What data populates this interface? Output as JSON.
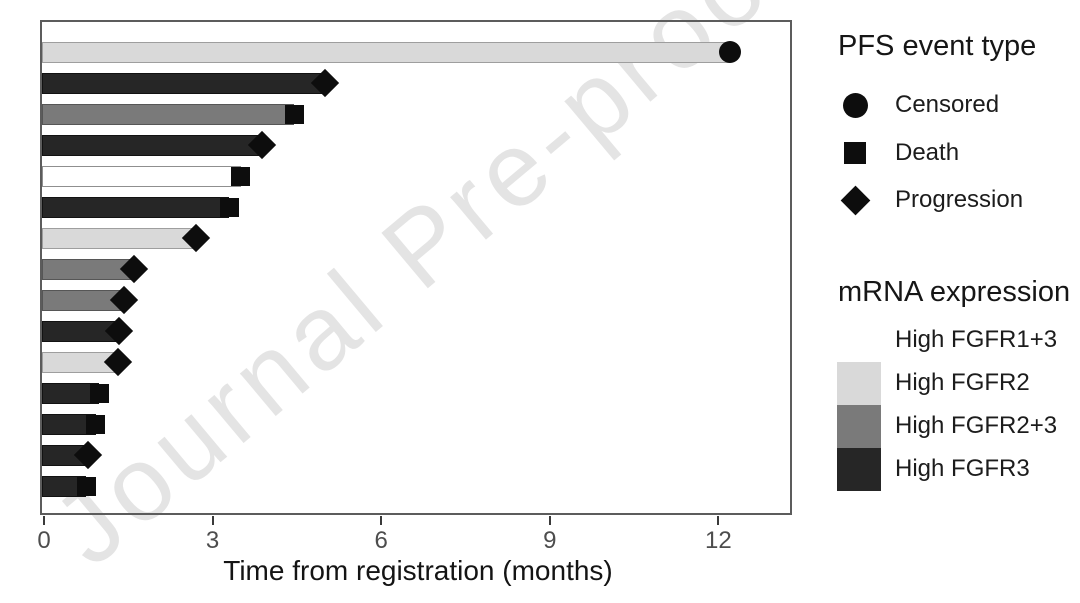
{
  "watermark": {
    "text": "Journal Pre-proof"
  },
  "chart_data": {
    "type": "bar",
    "orientation": "horizontal",
    "title": "",
    "xlabel": "Time from registration (months)",
    "ylabel": "",
    "x_ticks": [
      0,
      3,
      6,
      9,
      12
    ],
    "xlim": [
      0,
      13.3
    ],
    "grid": false,
    "legend_position": "right",
    "patients": [
      {
        "months": 12.2,
        "event": "Censored",
        "expression": "High FGFR2"
      },
      {
        "months": 5.0,
        "event": "Progression",
        "expression": "High FGFR3"
      },
      {
        "months": 4.45,
        "event": "Death",
        "expression": "High FGFR2+3"
      },
      {
        "months": 3.88,
        "event": "Progression",
        "expression": "High FGFR3"
      },
      {
        "months": 3.5,
        "event": "Death",
        "expression": "High FGFR1+3"
      },
      {
        "months": 3.3,
        "event": "Death",
        "expression": "High FGFR3"
      },
      {
        "months": 2.7,
        "event": "Progression",
        "expression": "High FGFR2"
      },
      {
        "months": 1.6,
        "event": "Progression",
        "expression": "High FGFR2+3"
      },
      {
        "months": 1.42,
        "event": "Progression",
        "expression": "High FGFR2+3"
      },
      {
        "months": 1.33,
        "event": "Progression",
        "expression": "High FGFR3"
      },
      {
        "months": 1.31,
        "event": "Progression",
        "expression": "High FGFR2"
      },
      {
        "months": 0.98,
        "event": "Death",
        "expression": "High FGFR3"
      },
      {
        "months": 0.92,
        "event": "Death",
        "expression": "High FGFR3"
      },
      {
        "months": 0.78,
        "event": "Progression",
        "expression": "High FGFR3"
      },
      {
        "months": 0.75,
        "event": "Death",
        "expression": "High FGFR3"
      }
    ],
    "event_markers": {
      "Censored": "circle",
      "Death": "square",
      "Progression": "diamond"
    },
    "expression_colors": {
      "High FGFR1+3": {
        "fill": "#ffffff",
        "border": "#8f8f8f"
      },
      "High FGFR2": {
        "fill": "#d9d9d9",
        "border": "#9e9e9e"
      },
      "High FGFR2+3": {
        "fill": "#7a7a7a",
        "border": "#565656"
      },
      "High FGFR3": {
        "fill": "#262626",
        "border": "#121212"
      }
    },
    "marker_color": "#0d0d0d"
  },
  "legend_event": {
    "title": "PFS event type",
    "items": [
      {
        "label": "Censored",
        "marker": "circle"
      },
      {
        "label": "Death",
        "marker": "square"
      },
      {
        "label": "Progression",
        "marker": "diamond"
      }
    ]
  },
  "legend_expression": {
    "title": "mRNA expression",
    "items": [
      {
        "label": "High FGFR1+3",
        "color": "#ffffff"
      },
      {
        "label": "High FGFR2",
        "color": "#d9d9d9"
      },
      {
        "label": "High FGFR2+3",
        "color": "#7a7a7a"
      },
      {
        "label": "High FGFR3",
        "color": "#262626"
      }
    ]
  }
}
